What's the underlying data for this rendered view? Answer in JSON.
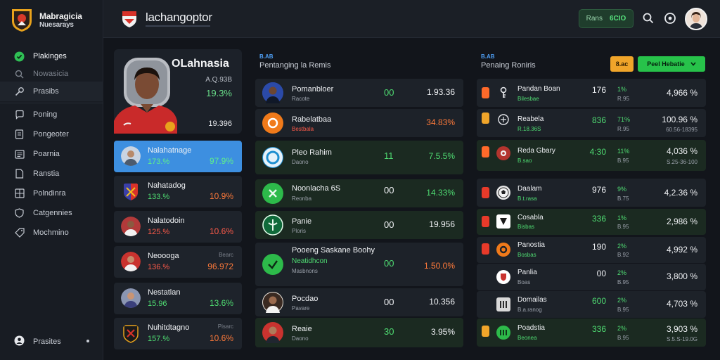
{
  "brand": {
    "title": "Mabragicia",
    "subtitle": "Nuesarays"
  },
  "nav": {
    "items": [
      {
        "label": "Plakinges",
        "icon": "shield-check-icon"
      },
      {
        "label": "Nowasicia",
        "icon": "search-icon"
      },
      {
        "label": "Prasibs",
        "icon": "wrench-icon"
      },
      {
        "label": "Poning",
        "icon": "message-icon"
      },
      {
        "label": "Pongeoter",
        "icon": "document-icon"
      },
      {
        "label": "Poarnia",
        "icon": "list-icon"
      },
      {
        "label": "Ranstia",
        "icon": "file-icon"
      },
      {
        "label": "Polndinra",
        "icon": "grid-icon"
      },
      {
        "label": "Catgennies",
        "icon": "shield-icon"
      },
      {
        "label": "Mochmino",
        "icon": "tag-icon"
      }
    ],
    "bottom": {
      "label": "Prasites",
      "icon": "user-icon"
    }
  },
  "topbar": {
    "title": "lachangoptor",
    "badge_label": "Rans",
    "badge_value": "6CIO"
  },
  "featured": {
    "name": "OLahnasia",
    "stat1": "A.Q.93B",
    "stat2": "19.3%",
    "stat3": "19.396"
  },
  "players": [
    {
      "name": "Nalahatnage",
      "value": "173.%",
      "rate": "97.9%",
      "value_color": "green",
      "rate_color": "green",
      "tag": ""
    },
    {
      "name": "Nahatadog",
      "value": "133.%",
      "rate": "10.9%",
      "value_color": "green",
      "rate_color": "orange",
      "tag": ""
    },
    {
      "name": "Nalatodoin",
      "value": "125.%",
      "rate": "10.6%",
      "value_color": "red",
      "rate_color": "red",
      "tag": ""
    },
    {
      "name": "Neoooga",
      "value": "136.%",
      "rate": "96.972",
      "value_color": "red",
      "rate_color": "orange",
      "tag": "Bearc"
    },
    {
      "name": "Nestatlan",
      "value": "15.96",
      "rate": "13.6%",
      "value_color": "green",
      "rate_color": "green",
      "tag": ""
    },
    {
      "name": "Nuhitdtagno",
      "value": "157.%",
      "rate": "10.6%",
      "value_color": "green",
      "rate_color": "orange",
      "tag": "Pisarc"
    }
  ],
  "middle": {
    "tag": "B.AB",
    "title": "Pentanging la Remis",
    "rows": [
      {
        "title": "Pomanbloer",
        "sub": "Racote",
        "count": "00",
        "value": "1.93.36",
        "count_color": "green",
        "value_color": "white",
        "sub_color": "grey"
      },
      {
        "title": "Rabelatbaa",
        "sub": "Bestbala",
        "count": "",
        "value": "34.83%",
        "count_color": "green",
        "value_color": "orange",
        "sub_color": "red"
      },
      {
        "title": "Pleo Rahim",
        "sub": "Daono",
        "count": "11",
        "value": "7.5.5%",
        "count_color": "green",
        "value_color": "green",
        "sub_color": "grey"
      },
      {
        "title": "Noonlacha 6S",
        "sub": "Reonba",
        "count": "00",
        "value": "14.33%",
        "count_color": "white",
        "value_color": "green",
        "sub_color": "grey"
      },
      {
        "title": "Panie",
        "sub": "Ploris",
        "count": "00",
        "value": "19.956",
        "count_color": "white",
        "value_color": "white",
        "sub_color": "grey"
      },
      {
        "title": "Pooeng Saskane Boohy",
        "sub": "Neatidhcon",
        "sub2": "Masbnons",
        "count": "00",
        "value": "1.50.0%",
        "count_color": "green",
        "value_color": "orange",
        "sub_color": "green"
      },
      {
        "title": "Pocdao",
        "sub": "Pavare",
        "count": "00",
        "value": "10.356",
        "count_color": "white",
        "value_color": "white",
        "sub_color": "grey"
      },
      {
        "title": "Reaie",
        "sub": "Daono",
        "count": "30",
        "value": "3.95%",
        "count_color": "green",
        "value_color": "white",
        "sub_color": "grey"
      }
    ]
  },
  "right": {
    "tag": "B.AB",
    "title": "Penaing Roniris",
    "btn_orange": "8.ac",
    "btn_green": "Peel Hebatie",
    "rows": [
      {
        "title": "Pandan Boan",
        "sub": "Bilesbae",
        "c1": "176",
        "c2": "1%",
        "c2b": "R.95",
        "value": "4,966 %",
        "vsub": "",
        "c1_color": "white",
        "sub_color": "green",
        "bar": "#ff6a2a",
        "icon": "key-icon",
        "iconbg": "#1d2229"
      },
      {
        "title": "Reabela",
        "sub": "R.18.36S",
        "c1": "836",
        "c2": "71%",
        "c2b": "R.95",
        "value": "100.96 %",
        "vsub": "60.56-18395",
        "c1_color": "green",
        "sub_color": "green",
        "bar": "#f0a52a",
        "icon": "club-icon",
        "iconbg": "#1d2229"
      },
      {
        "title": "Reda Gbary",
        "sub": "B.sao",
        "c1": "4:30",
        "c2": "11%",
        "c2b": "B.95",
        "value": "4,036 %",
        "vsub": "S.25-36-100",
        "c1_color": "green",
        "sub_color": "green",
        "bar": "#ff6a2a",
        "icon": "crest-icon",
        "iconbg": "#b3342e"
      },
      {
        "title": "Daalam",
        "sub": "B.t.rasa",
        "c1": "976",
        "c2": "9%",
        "c2b": "B.75",
        "value": "4,2.36 %",
        "vsub": "",
        "c1_color": "white",
        "sub_color": "green",
        "bar": "#e83a2a",
        "icon": "ball-icon",
        "iconbg": "#e8e8e8"
      },
      {
        "title": "Cosabla",
        "sub": "Bisbas",
        "c1": "336",
        "c2": "1%",
        "c2b": "B.95",
        "value": "2,986 %",
        "vsub": "",
        "c1_color": "green",
        "sub_color": "green",
        "bar": "#e83a2a",
        "icon": "badge-icon",
        "iconbg": "#ffffff"
      },
      {
        "title": "Panostia",
        "sub": "Bosbas",
        "c1": "190",
        "c2": "2%",
        "c2b": "B.92",
        "value": "4,992 %",
        "vsub": "",
        "c1_color": "white",
        "sub_color": "green",
        "bar": "#e83a2a",
        "icon": "ring-icon",
        "iconbg": "#f07a1a"
      },
      {
        "title": "Panlia",
        "sub": "Boas",
        "c1": "00",
        "c2": "2%",
        "c2b": "B.95",
        "value": "3,800 %",
        "vsub": "",
        "c1_color": "white",
        "sub_color": "grey",
        "bar": "",
        "icon": "shield-icon",
        "iconbg": "#ffffff"
      },
      {
        "title": "Domailas",
        "sub": "B.a.ranog",
        "c1": "600",
        "c2": "2%",
        "c2b": "B.95",
        "value": "4,703 %",
        "vsub": "",
        "c1_color": "green",
        "sub_color": "grey",
        "bar": "",
        "icon": "stripe-icon",
        "iconbg": "#d9d9d9"
      },
      {
        "title": "Poadstia",
        "sub": "Beonea",
        "c1": "336",
        "c2": "2%",
        "c2b": "B.95",
        "value": "3,903 %",
        "vsub": "S.5.S-19.0G",
        "c1_color": "green",
        "sub_color": "green",
        "bar": "#f0a52a",
        "icon": "bars-icon",
        "iconbg": "#2dba4a"
      }
    ]
  },
  "colors": {
    "accent_blue": "#3d8fe0",
    "accent_green": "#27c24a",
    "accent_orange": "#f0a52a",
    "accent_red": "#ff5b4a"
  }
}
